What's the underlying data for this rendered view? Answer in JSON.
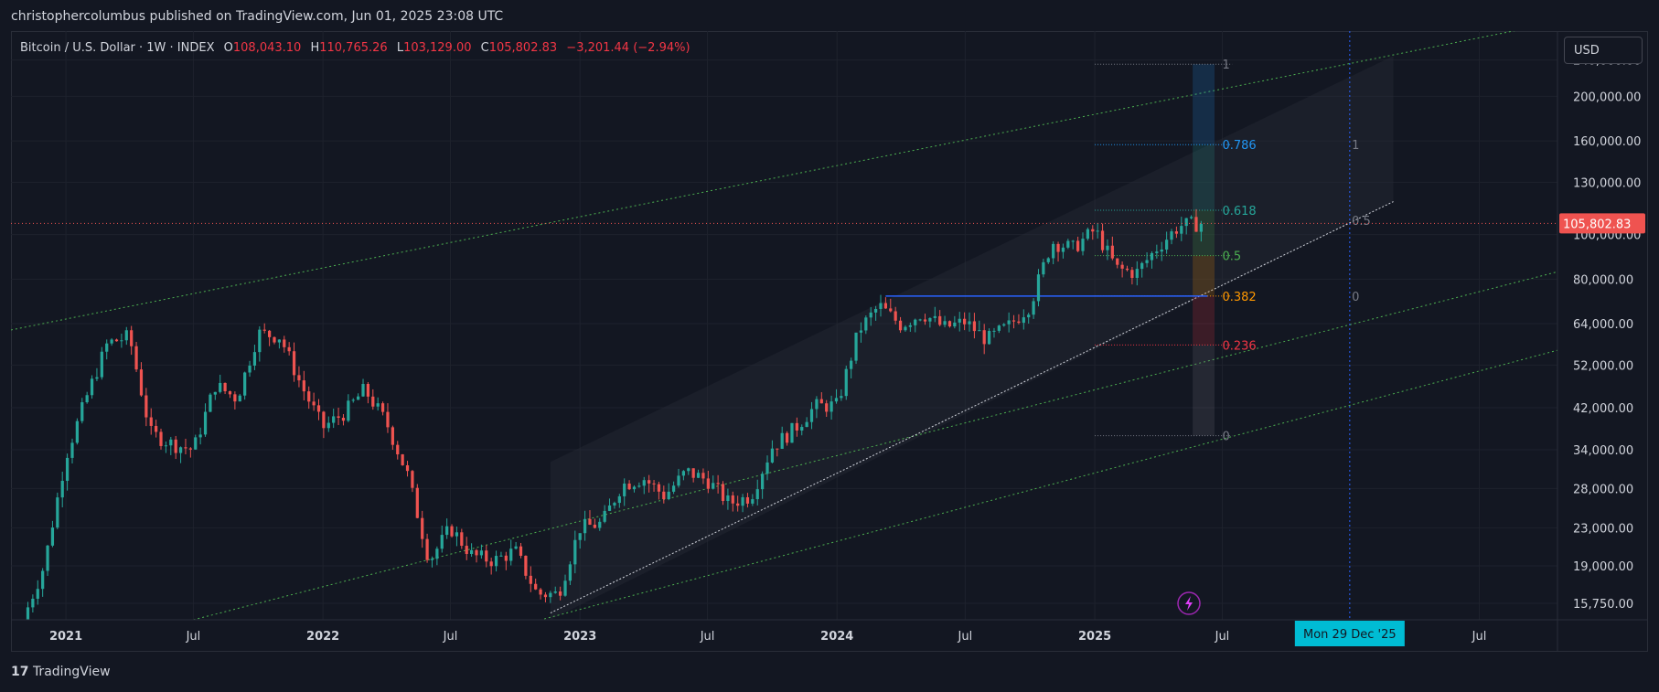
{
  "header": {
    "published": "christophercolumbus published on TradingView.com, Jun 01, 2025 23:08 UTC"
  },
  "legend": {
    "symbol": "Bitcoin / U.S. Dollar · 1W · INDEX",
    "open_label": "O",
    "open": "108,043.10",
    "high_label": "H",
    "high": "110,765.26",
    "low_label": "L",
    "low": "103,129.00",
    "close_label": "C",
    "close": "105,802.83",
    "change": "−3,201.44 (−2.94%)"
  },
  "currency_button": "USD",
  "footer": {
    "brand": "TradingView"
  },
  "colors": {
    "background": "#131722",
    "up": "#26a69a",
    "down": "#ef5350",
    "price_line": "#ef5350",
    "fib_0786": "#2196f3",
    "fib_0618": "#26a69a",
    "fib_05": "#4caf50",
    "fib_0382": "#ff9800",
    "fib_0236": "#f23645"
  },
  "chart_data": {
    "type": "candlestick",
    "title": "Bitcoin / U.S. Dollar · 1W · INDEX",
    "y_scale": "log",
    "ylim": [
      14500,
      265000
    ],
    "x_range": [
      "2020-10-15",
      "2026-10-20"
    ],
    "y_ticks": [
      240000,
      200000,
      160000,
      130000,
      100000,
      80000,
      64000,
      52000,
      42000,
      34000,
      28000,
      23000,
      19000,
      15750
    ],
    "y_tick_labels": [
      "240,000.00",
      "200,000.00",
      "160,000.00",
      "130,000.00",
      "100,000.00",
      "80,000.00",
      "64,000.00",
      "52,000.00",
      "42,000.00",
      "34,000.00",
      "28,000.00",
      "23,000.00",
      "19,000.00",
      "15,750.00"
    ],
    "x_ticks": [
      {
        "date": "2021-01-01",
        "label": "2021"
      },
      {
        "date": "2021-07-01",
        "label": "Jul"
      },
      {
        "date": "2022-01-01",
        "label": "2022"
      },
      {
        "date": "2022-07-01",
        "label": "Jul"
      },
      {
        "date": "2023-01-01",
        "label": "2023"
      },
      {
        "date": "2023-07-01",
        "label": "Jul"
      },
      {
        "date": "2024-01-01",
        "label": "2024"
      },
      {
        "date": "2024-07-01",
        "label": "Jul"
      },
      {
        "date": "2025-01-01",
        "label": "2025"
      },
      {
        "date": "2025-07-01",
        "label": "Jul"
      },
      {
        "date": "2026-07-01",
        "label": "Jul"
      }
    ],
    "crosshair": {
      "date": "2025-12-29",
      "label": "Mon 29 Dec '25"
    },
    "last_price": {
      "value": 105802.83,
      "label": "105,802.83"
    },
    "close_path": [
      [
        "2020-11-01",
        14500
      ],
      [
        "2020-12-01",
        19000
      ],
      [
        "2021-01-01",
        33000
      ],
      [
        "2021-02-01",
        45000
      ],
      [
        "2021-03-01",
        58000
      ],
      [
        "2021-04-01",
        60000
      ],
      [
        "2021-05-01",
        37000
      ],
      [
        "2021-06-01",
        35000
      ],
      [
        "2021-07-01",
        34000
      ],
      [
        "2021-08-01",
        47000
      ],
      [
        "2021-09-01",
        44000
      ],
      [
        "2021-10-01",
        61000
      ],
      [
        "2021-11-01",
        60000
      ],
      [
        "2021-12-01",
        47000
      ],
      [
        "2022-01-01",
        38000
      ],
      [
        "2022-02-01",
        41000
      ],
      [
        "2022-03-01",
        46000
      ],
      [
        "2022-04-01",
        39000
      ],
      [
        "2022-05-01",
        30000
      ],
      [
        "2022-06-01",
        19500
      ],
      [
        "2022-07-01",
        23000
      ],
      [
        "2022-08-01",
        20000
      ],
      [
        "2022-09-01",
        19500
      ],
      [
        "2022-10-01",
        20500
      ],
      [
        "2022-11-01",
        16500
      ],
      [
        "2022-12-01",
        16500
      ],
      [
        "2023-01-01",
        23000
      ],
      [
        "2023-02-01",
        23500
      ],
      [
        "2023-03-01",
        28500
      ],
      [
        "2023-04-01",
        29500
      ],
      [
        "2023-05-01",
        27000
      ],
      [
        "2023-06-01",
        30500
      ],
      [
        "2023-07-01",
        29200
      ],
      [
        "2023-08-01",
        26000
      ],
      [
        "2023-09-01",
        27000
      ],
      [
        "2023-10-01",
        34500
      ],
      [
        "2023-11-01",
        37700
      ],
      [
        "2023-12-01",
        42300
      ],
      [
        "2024-01-01",
        42500
      ],
      [
        "2024-02-01",
        62000
      ],
      [
        "2024-03-01",
        70000
      ],
      [
        "2024-04-01",
        63500
      ],
      [
        "2024-05-01",
        67500
      ],
      [
        "2024-06-01",
        62700
      ],
      [
        "2024-07-01",
        64600
      ],
      [
        "2024-08-01",
        59000
      ],
      [
        "2024-09-01",
        63300
      ],
      [
        "2024-10-01",
        70200
      ],
      [
        "2024-11-01",
        96400
      ],
      [
        "2024-12-01",
        93400
      ],
      [
        "2025-01-01",
        102400
      ],
      [
        "2025-02-01",
        84300
      ],
      [
        "2025-03-01",
        82500
      ],
      [
        "2025-04-01",
        94200
      ],
      [
        "2025-05-01",
        104600
      ],
      [
        "2025-06-01",
        105802.83
      ]
    ],
    "fib_levels": [
      {
        "ratio": "1",
        "label": "1",
        "value": 235000,
        "color": "#787b86"
      },
      {
        "ratio": "0.786",
        "label": "0.786",
        "value": 157000,
        "color": "#2196f3"
      },
      {
        "ratio": "0.618",
        "label": "0.618",
        "value": 113000,
        "color": "#26a69a"
      },
      {
        "ratio": "0.5",
        "label": "0.5",
        "value": 90000,
        "color": "#4caf50"
      },
      {
        "ratio": "0.382",
        "label": "0.382",
        "value": 73500,
        "color": "#ff9800"
      },
      {
        "ratio": "0.236",
        "label": "0.236",
        "value": 57500,
        "color": "#f23645"
      },
      {
        "ratio": "0",
        "label": "0",
        "value": 36500,
        "color": "#787b86"
      }
    ],
    "fib_extension_labels": [
      {
        "label": "1",
        "value": 157000
      },
      {
        "label": "0.5",
        "value": 107500
      },
      {
        "label": "0",
        "value": 73500
      }
    ],
    "horizontal_lines": [
      {
        "value": 73500,
        "from": "2024-03-10",
        "to": "2025-06-10",
        "color": "#2962ff"
      }
    ]
  }
}
